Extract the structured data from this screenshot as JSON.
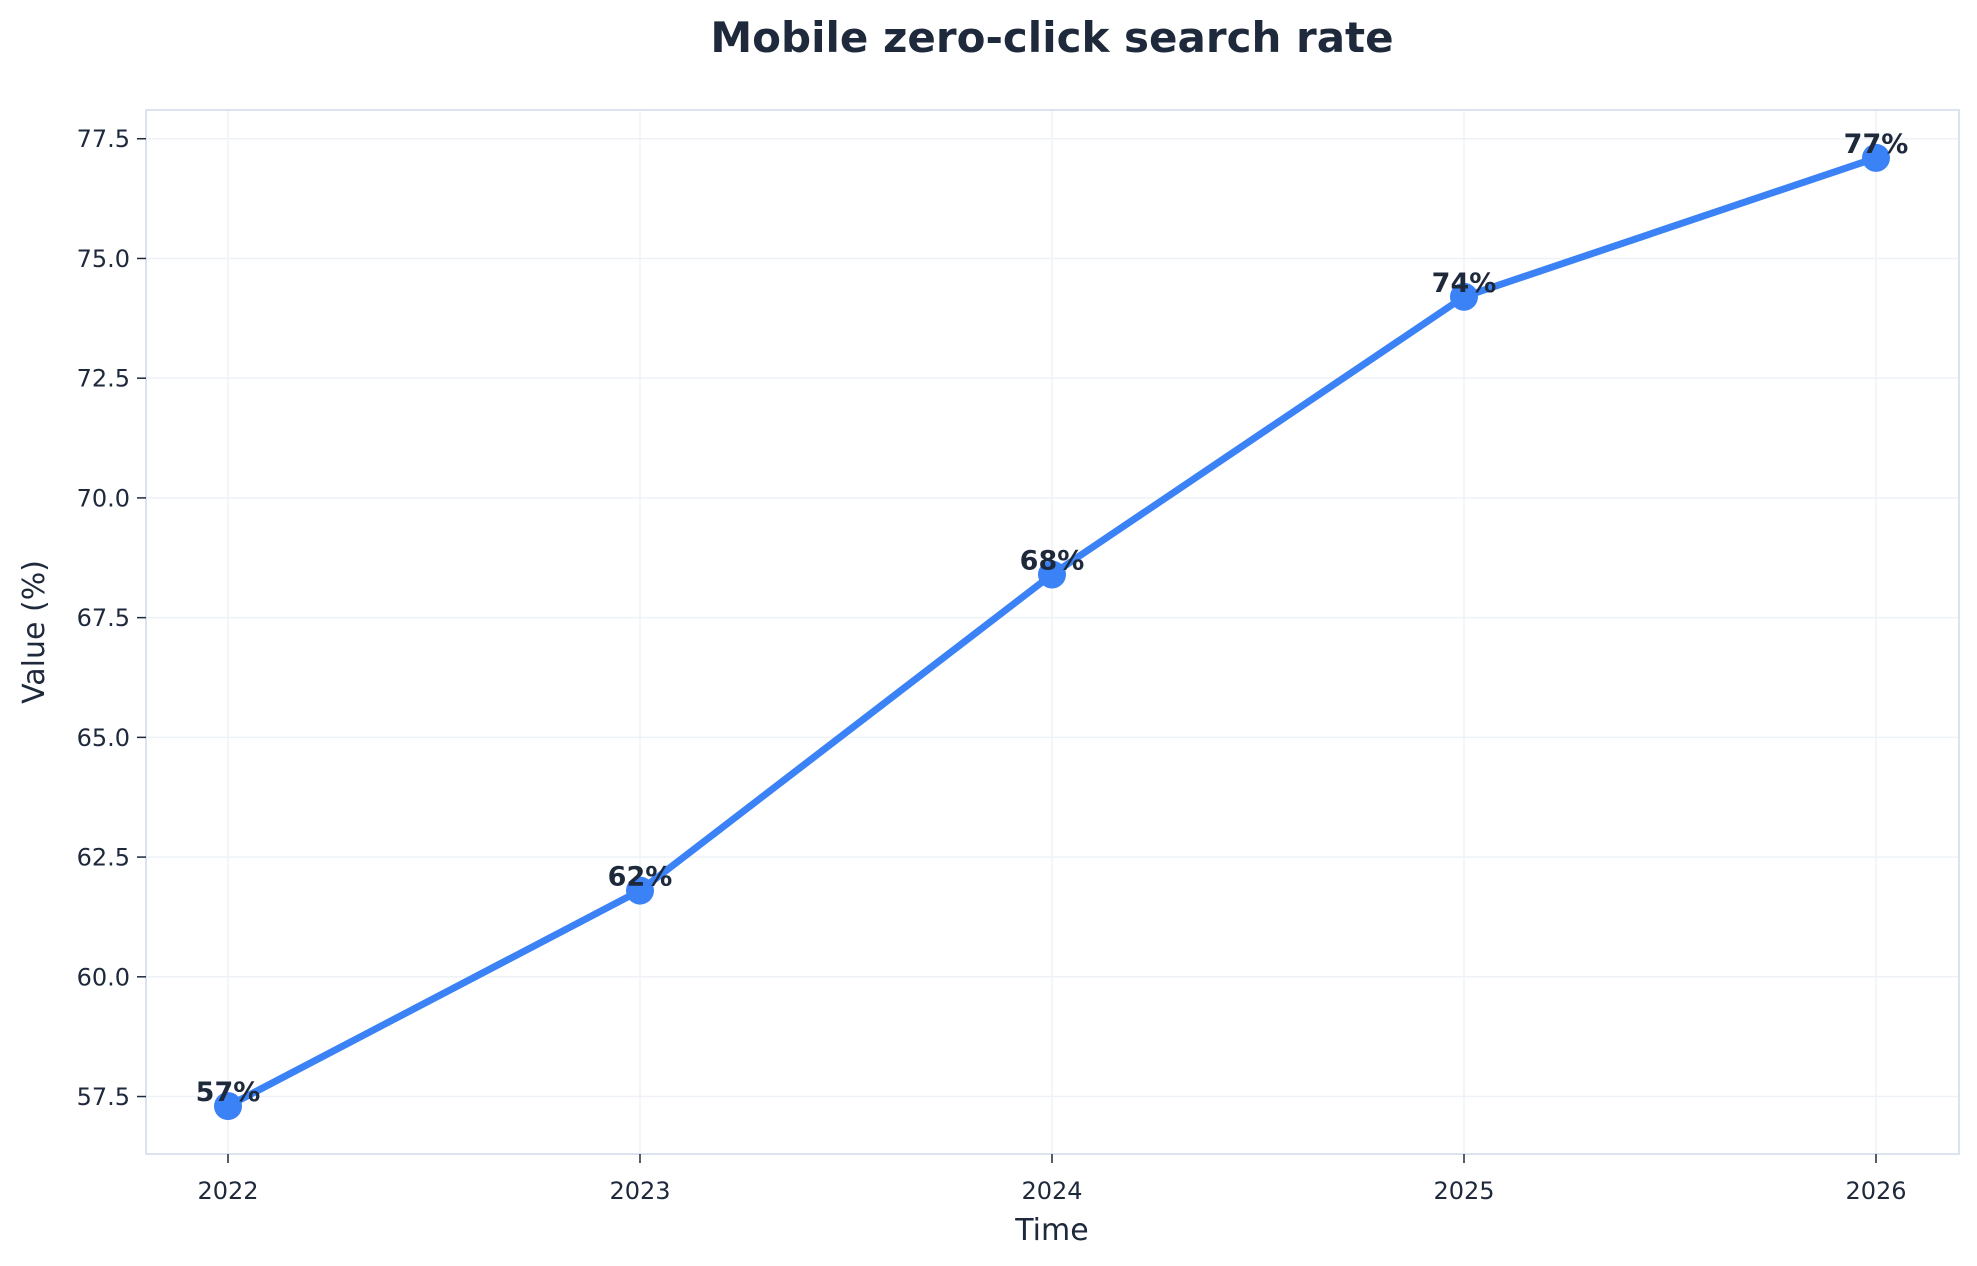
{
  "chart_data": {
    "type": "line",
    "title": "Mobile zero-click search rate",
    "xlabel": "Time",
    "ylabel": "Value (%)",
    "x": [
      "2022",
      "2023",
      "2024",
      "2025",
      "2026"
    ],
    "series": [
      {
        "values": [
          57.3,
          61.8,
          68.4,
          74.2,
          77.1
        ],
        "labels": [
          "57%",
          "62%",
          "68%",
          "74%",
          "77%"
        ],
        "color": "#3b82f6"
      }
    ],
    "ylim": [
      56.3,
      78.1
    ],
    "yticks": [
      "57.5",
      "60.0",
      "62.5",
      "65.0",
      "67.5",
      "70.0",
      "72.5",
      "75.0",
      "77.5"
    ],
    "grid": true,
    "legend": "none",
    "colors": {
      "text": "#1e293b",
      "frame": "#dbe3ef",
      "grid": "#eef2f7",
      "line": "#3b82f6"
    }
  }
}
